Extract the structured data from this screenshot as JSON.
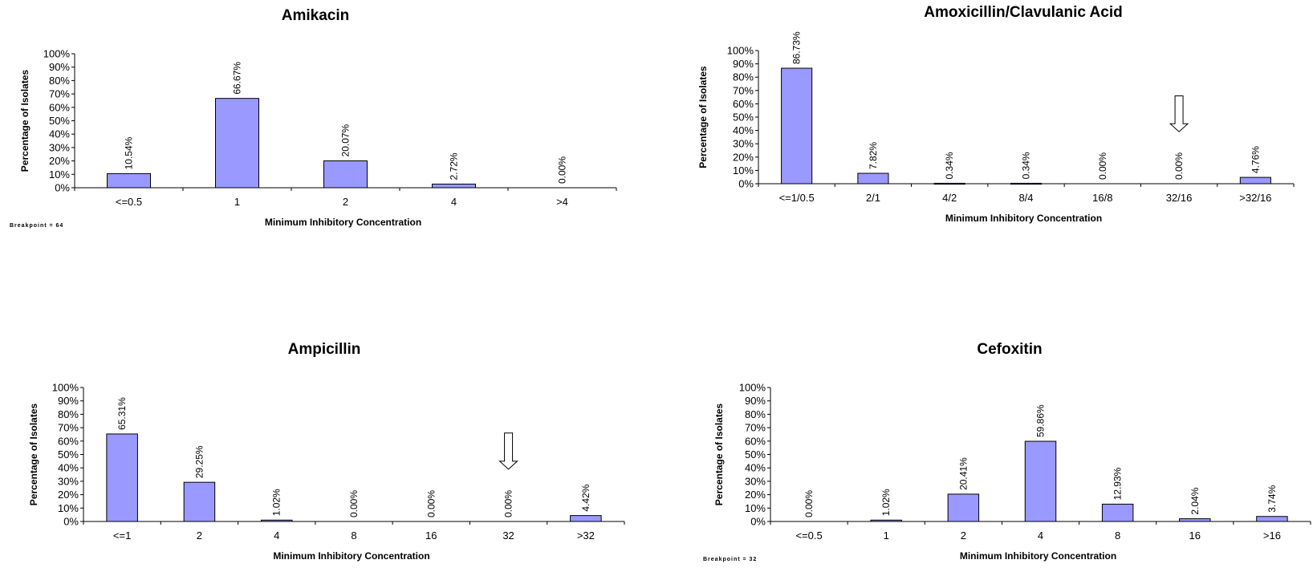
{
  "colors": {
    "bar": "#9999FF",
    "bar_outline": "#000000",
    "axis": "#000000"
  },
  "y_ticks": [
    "0%",
    "10%",
    "20%",
    "30%",
    "40%",
    "50%",
    "60%",
    "70%",
    "80%",
    "90%",
    "100%"
  ],
  "chart_data": [
    {
      "type": "bar",
      "title": "Amikacin",
      "xlabel": "Minimum Inhibitory Concentration",
      "ylabel": "Percentage of Isolates",
      "ylim": [
        0,
        100
      ],
      "categories": [
        "<=0.5",
        "1",
        "2",
        "4",
        ">4"
      ],
      "values": [
        10.54,
        66.67,
        20.07,
        2.72,
        0.0
      ],
      "data_labels": [
        "10.54%",
        "66.67%",
        "20.07%",
        "2.72%",
        "0.00%"
      ],
      "note": "Breakpoint = 64",
      "arrow_category": null
    },
    {
      "type": "bar",
      "title": "Amoxicillin/Clavulanic Acid",
      "xlabel": "Minimum Inhibitory Concentration",
      "ylabel": "Percentage of Isolates",
      "ylim": [
        0,
        100
      ],
      "categories": [
        "<=1/0.5",
        "2/1",
        "4/2",
        "8/4",
        "16/8",
        "32/16",
        ">32/16"
      ],
      "values": [
        86.73,
        7.82,
        0.34,
        0.34,
        0.0,
        0.0,
        4.76
      ],
      "data_labels": [
        "86.73%",
        "7.82%",
        "0.34%",
        "0.34%",
        "0.00%",
        "0.00%",
        "4.76%"
      ],
      "note": "",
      "arrow_category": "32/16"
    },
    {
      "type": "bar",
      "title": "Ampicillin",
      "xlabel": "Minimum Inhibitory Concentration",
      "ylabel": "Percentage of Isolates",
      "ylim": [
        0,
        100
      ],
      "categories": [
        "<=1",
        "2",
        "4",
        "8",
        "16",
        "32",
        ">32"
      ],
      "values": [
        65.31,
        29.25,
        1.02,
        0.0,
        0.0,
        0.0,
        4.42
      ],
      "data_labels": [
        "65.31%",
        "29.25%",
        "1.02%",
        "0.00%",
        "0.00%",
        "0.00%",
        "4.42%"
      ],
      "note": "",
      "arrow_category": "32"
    },
    {
      "type": "bar",
      "title": "Cefoxitin",
      "xlabel": "Minimum Inhibitory Concentration",
      "ylabel": "Percentage of Isolates",
      "ylim": [
        0,
        100
      ],
      "categories": [
        "<=0.5",
        "1",
        "2",
        "4",
        "8",
        "16",
        ">16"
      ],
      "values": [
        0.0,
        1.02,
        20.41,
        59.86,
        12.93,
        2.04,
        3.74
      ],
      "data_labels": [
        "0.00%",
        "1.02%",
        "20.41%",
        "59.86%",
        "12.93%",
        "2.04%",
        "3.74%"
      ],
      "note": "Breakpoint = 32",
      "arrow_category": null
    }
  ]
}
